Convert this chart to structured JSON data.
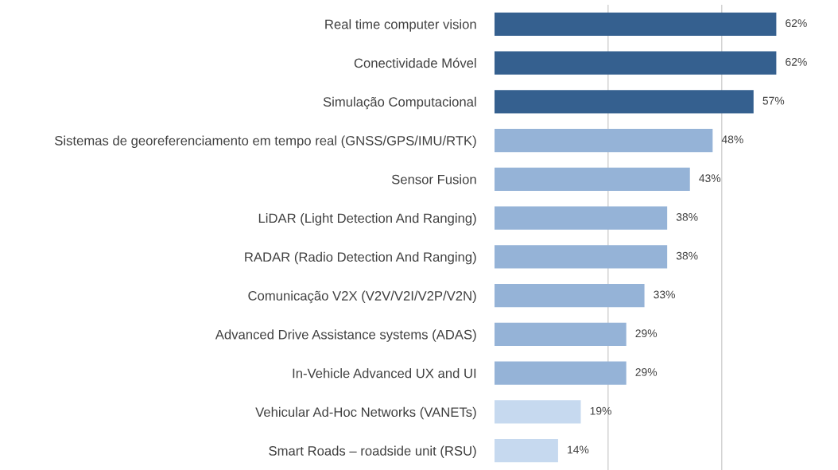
{
  "chart_data": {
    "type": "bar",
    "orientation": "horizontal",
    "categories": [
      "Real time computer vision",
      "Conectividade Móvel",
      "Simulação Computacional",
      "Sistemas de georeferenciamento em tempo real (GNSS/GPS/IMU/RTK)",
      "Sensor Fusion",
      "LiDAR (Light Detection And Ranging)",
      "RADAR (Radio Detection And Ranging)",
      "Comunicação V2X (V2V/V2I/V2P/V2N)",
      "Advanced Drive Assistance systems (ADAS)",
      "In-Vehicle Advanced UX and UI",
      "Vehicular Ad-Hoc Networks (VANETs)",
      "Smart Roads – roadside unit (RSU)"
    ],
    "values": [
      62,
      62,
      57,
      48,
      43,
      38,
      38,
      33,
      29,
      29,
      19,
      14
    ],
    "value_labels": [
      "62%",
      "62%",
      "57%",
      "48%",
      "43%",
      "38%",
      "38%",
      "33%",
      "29%",
      "29%",
      "19%",
      "14%"
    ],
    "colors": [
      "#35608f",
      "#35608f",
      "#35608f",
      "#95b3d7",
      "#95b3d7",
      "#95b3d7",
      "#95b3d7",
      "#95b3d7",
      "#95b3d7",
      "#95b3d7",
      "#c6d9ef",
      "#c6d9ef"
    ],
    "ref_lines": [
      {
        "axis": "x",
        "value": 25,
        "color": "#d0d0d0"
      },
      {
        "axis": "x",
        "value": 50,
        "color": "#d0d0d0"
      }
    ],
    "tick_labels": "y"
  }
}
